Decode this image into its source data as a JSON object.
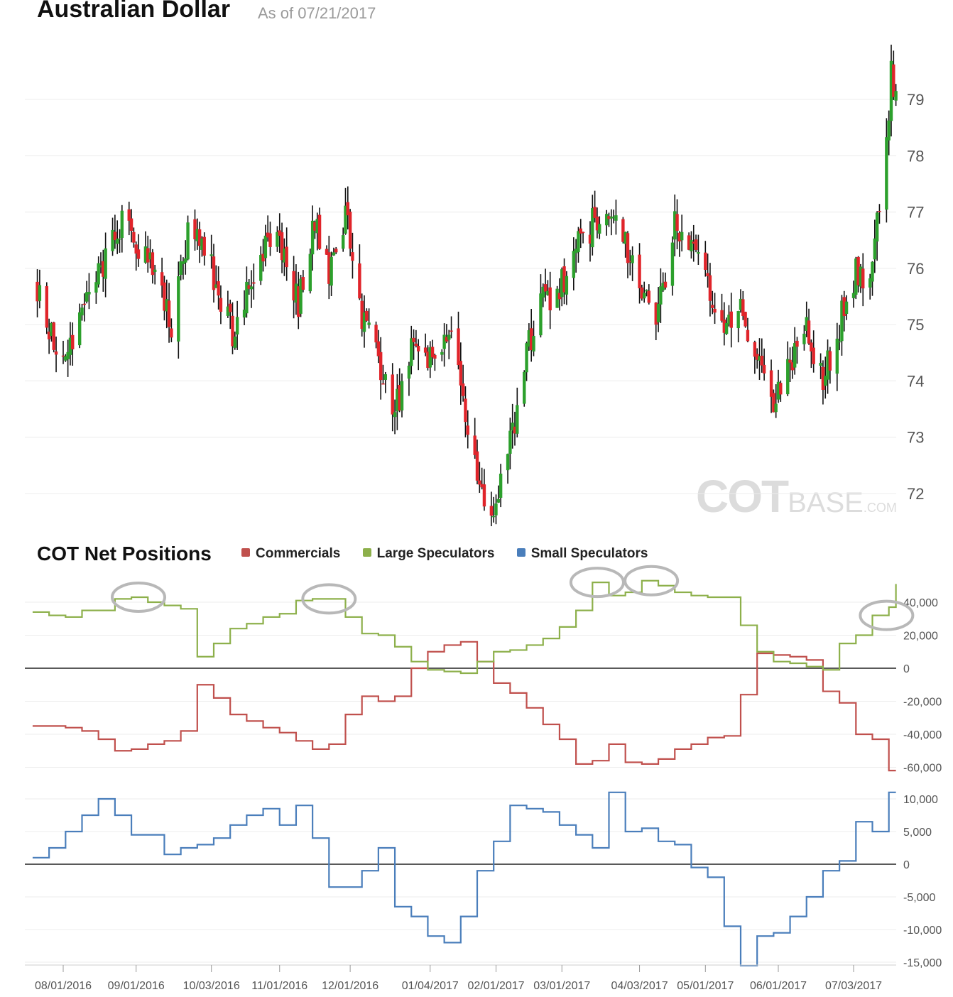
{
  "header": {
    "title": "Australian Dollar",
    "as_of": "As of 07/21/2017"
  },
  "cot_header": {
    "title": "COT Net Positions"
  },
  "watermark": {
    "cot": "COT",
    "base": "BASE",
    "com": ".COM"
  },
  "legend": [
    {
      "label": "Commercials",
      "color": "#c0504d"
    },
    {
      "label": "Large Speculators",
      "color": "#8db04b"
    },
    {
      "label": "Small Speculators",
      "color": "#4a7ebb"
    }
  ],
  "chart_data": [
    {
      "type": "candlestick",
      "title": "Australian Dollar",
      "y_ticks": [
        72,
        73,
        74,
        75,
        76,
        77,
        78,
        79
      ],
      "ylim": [
        71.5,
        79.9
      ],
      "colors": {
        "up": "#2ca02c",
        "down": "#e0242a",
        "wick": "#111111"
      },
      "x_range": [
        "07/21/2016",
        "07/21/2017"
      ],
      "close_path": [
        [
          "07/21/2016",
          75.7
        ],
        [
          "07/27/2016",
          74.8
        ],
        [
          "08/03/2016",
          74.4
        ],
        [
          "08/10/2016",
          75.5
        ],
        [
          "08/18/2016",
          76.0
        ],
        [
          "08/26/2016",
          76.9
        ],
        [
          "09/02/2016",
          76.4
        ],
        [
          "09/09/2016",
          76.1
        ],
        [
          "09/16/2016",
          75.0
        ],
        [
          "09/23/2016",
          76.6
        ],
        [
          "09/30/2016",
          76.5
        ],
        [
          "10/06/2016",
          75.4
        ],
        [
          "10/13/2016",
          74.8
        ],
        [
          "10/20/2016",
          75.9
        ],
        [
          "10/28/2016",
          76.6
        ],
        [
          "11/03/2016",
          76.2
        ],
        [
          "11/09/2016",
          75.4
        ],
        [
          "11/16/2016",
          76.8
        ],
        [
          "11/22/2016",
          75.9
        ],
        [
          "11/29/2016",
          76.9
        ],
        [
          "12/06/2016",
          75.2
        ],
        [
          "12/14/2016",
          74.2
        ],
        [
          "12/20/2016",
          73.4
        ],
        [
          "12/27/2016",
          74.6
        ],
        [
          "01/04/2017",
          74.5
        ],
        [
          "01/11/2017",
          74.9
        ],
        [
          "01/17/2017",
          74.1
        ],
        [
          "01/23/2017",
          72.4
        ],
        [
          "01/30/2017",
          71.7
        ],
        [
          "02/06/2017",
          72.6
        ],
        [
          "02/14/2017",
          74.5
        ],
        [
          "02/21/2017",
          75.4
        ],
        [
          "02/28/2017",
          75.6
        ],
        [
          "03/07/2017",
          76.3
        ],
        [
          "03/14/2017",
          76.8
        ],
        [
          "03/21/2017",
          77.0
        ],
        [
          "03/28/2017",
          76.4
        ],
        [
          "04/04/2017",
          75.5
        ],
        [
          "04/11/2017",
          75.2
        ],
        [
          "04/18/2017",
          76.9
        ],
        [
          "04/25/2017",
          76.4
        ],
        [
          "05/02/2017",
          75.6
        ],
        [
          "05/09/2017",
          74.9
        ],
        [
          "05/16/2017",
          75.3
        ],
        [
          "05/23/2017",
          74.4
        ],
        [
          "05/30/2017",
          73.5
        ],
        [
          "06/06/2017",
          74.3
        ],
        [
          "06/13/2017",
          74.9
        ],
        [
          "06/20/2017",
          74.0
        ],
        [
          "06/27/2017",
          75.0
        ],
        [
          "07/04/2017",
          76.0
        ],
        [
          "07/10/2017",
          75.8
        ],
        [
          "07/13/2017",
          76.7
        ],
        [
          "07/17/2017",
          78.1
        ],
        [
          "07/19/2017",
          79.4
        ],
        [
          "07/21/2017",
          79.1
        ]
      ]
    },
    {
      "type": "line",
      "title": "COT Net Positions",
      "step": true,
      "y_ticks": [
        -60000,
        -40000,
        -20000,
        0,
        20000,
        40000
      ],
      "y_tick_labels": [
        "-60,000",
        "-40,000",
        "-20,000",
        "0",
        "20,000",
        "40,000"
      ],
      "ylim": [
        -61000,
        52000
      ],
      "annotations": "gray ellipses around Large Speculators peaks",
      "series": [
        {
          "name": "Commercials",
          "color": "#c0504d",
          "points": [
            [
              "07/19/2016",
              -35000
            ],
            [
              "07/26/2016",
              -35000
            ],
            [
              "08/02/2016",
              -36000
            ],
            [
              "08/09/2016",
              -38000
            ],
            [
              "08/16/2016",
              -43000
            ],
            [
              "08/23/2016",
              -50000
            ],
            [
              "08/30/2016",
              -49000
            ],
            [
              "09/06/2016",
              -46000
            ],
            [
              "09/13/2016",
              -44000
            ],
            [
              "09/20/2016",
              -38000
            ],
            [
              "09/27/2016",
              -10000
            ],
            [
              "10/04/2016",
              -18000
            ],
            [
              "10/11/2016",
              -28000
            ],
            [
              "10/18/2016",
              -32000
            ],
            [
              "10/25/2016",
              -36000
            ],
            [
              "11/01/2016",
              -39000
            ],
            [
              "11/08/2016",
              -44000
            ],
            [
              "11/15/2016",
              -49000
            ],
            [
              "11/22/2016",
              -46000
            ],
            [
              "11/29/2016",
              -28000
            ],
            [
              "12/06/2016",
              -17000
            ],
            [
              "12/13/2016",
              -20000
            ],
            [
              "12/20/2016",
              -17000
            ],
            [
              "12/27/2016",
              0
            ],
            [
              "01/03/2017",
              10000
            ],
            [
              "01/10/2017",
              14000
            ],
            [
              "01/17/2017",
              16000
            ],
            [
              "01/24/2017",
              4000
            ],
            [
              "01/31/2017",
              -9000
            ],
            [
              "02/07/2017",
              -15000
            ],
            [
              "02/14/2017",
              -24000
            ],
            [
              "02/21/2017",
              -34000
            ],
            [
              "02/28/2017",
              -43000
            ],
            [
              "03/07/2017",
              -58000
            ],
            [
              "03/14/2017",
              -56000
            ],
            [
              "03/21/2017",
              -46000
            ],
            [
              "03/28/2017",
              -57000
            ],
            [
              "04/04/2017",
              -58000
            ],
            [
              "04/11/2017",
              -55000
            ],
            [
              "04/18/2017",
              -49000
            ],
            [
              "04/25/2017",
              -46000
            ],
            [
              "05/02/2017",
              -42000
            ],
            [
              "05/09/2017",
              -41000
            ],
            [
              "05/16/2017",
              -16000
            ],
            [
              "05/23/2017",
              9000
            ],
            [
              "05/30/2017",
              8000
            ],
            [
              "06/06/2017",
              7000
            ],
            [
              "06/13/2017",
              5000
            ],
            [
              "06/20/2017",
              -14000
            ],
            [
              "06/27/2017",
              -21000
            ],
            [
              "07/04/2017",
              -40000
            ],
            [
              "07/11/2017",
              -43000
            ],
            [
              "07/18/2017",
              -62000
            ],
            [
              "07/21/2017",
              -62000
            ]
          ]
        },
        {
          "name": "Large Speculators",
          "color": "#8db04b",
          "points": [
            [
              "07/19/2016",
              34000
            ],
            [
              "07/26/2016",
              32000
            ],
            [
              "08/02/2016",
              31000
            ],
            [
              "08/09/2016",
              35000
            ],
            [
              "08/16/2016",
              35000
            ],
            [
              "08/23/2016",
              42000
            ],
            [
              "08/30/2016",
              43000
            ],
            [
              "09/06/2016",
              40000
            ],
            [
              "09/13/2016",
              38000
            ],
            [
              "09/20/2016",
              36000
            ],
            [
              "09/27/2016",
              7000
            ],
            [
              "10/04/2016",
              15000
            ],
            [
              "10/11/2016",
              24000
            ],
            [
              "10/18/2016",
              27000
            ],
            [
              "10/25/2016",
              31000
            ],
            [
              "11/01/2016",
              33000
            ],
            [
              "11/08/2016",
              41000
            ],
            [
              "11/15/2016",
              42000
            ],
            [
              "11/22/2016",
              42000
            ],
            [
              "11/29/2016",
              31000
            ],
            [
              "12/06/2016",
              21000
            ],
            [
              "12/13/2016",
              20000
            ],
            [
              "12/20/2016",
              13000
            ],
            [
              "12/27/2016",
              4000
            ],
            [
              "01/03/2017",
              -1000
            ],
            [
              "01/10/2017",
              -2000
            ],
            [
              "01/17/2017",
              -3000
            ],
            [
              "01/24/2017",
              4000
            ],
            [
              "01/31/2017",
              10000
            ],
            [
              "02/07/2017",
              11000
            ],
            [
              "02/14/2017",
              14000
            ],
            [
              "02/21/2017",
              18000
            ],
            [
              "02/28/2017",
              25000
            ],
            [
              "03/07/2017",
              35000
            ],
            [
              "03/14/2017",
              52000
            ],
            [
              "03/21/2017",
              44000
            ],
            [
              "03/28/2017",
              46000
            ],
            [
              "04/04/2017",
              53000
            ],
            [
              "04/11/2017",
              50000
            ],
            [
              "04/18/2017",
              46000
            ],
            [
              "04/25/2017",
              44000
            ],
            [
              "05/02/2017",
              43000
            ],
            [
              "05/09/2017",
              43000
            ],
            [
              "05/16/2017",
              26000
            ],
            [
              "05/23/2017",
              10000
            ],
            [
              "05/30/2017",
              4000
            ],
            [
              "06/06/2017",
              3000
            ],
            [
              "06/13/2017",
              1000
            ],
            [
              "06/20/2017",
              -1000
            ],
            [
              "06/27/2017",
              15000
            ],
            [
              "07/04/2017",
              20000
            ],
            [
              "07/11/2017",
              32000
            ],
            [
              "07/18/2017",
              37000
            ],
            [
              "07/21/2017",
              51000
            ]
          ]
        }
      ]
    },
    {
      "type": "line",
      "step": true,
      "y_ticks": [
        -15000,
        -10000,
        -5000,
        0,
        5000,
        10000
      ],
      "y_tick_labels": [
        "-15,000",
        "-10,000",
        "-5,000",
        "0",
        "5,000",
        "10,000"
      ],
      "ylim": [
        -15500,
        11500
      ],
      "x_ticks": [
        "08/01/2016",
        "09/01/2016",
        "10/03/2016",
        "11/01/2016",
        "12/01/2016",
        "01/04/2017",
        "02/01/2017",
        "03/01/2017",
        "04/03/2017",
        "05/01/2017",
        "06/01/2017",
        "07/03/2017"
      ],
      "series": [
        {
          "name": "Small Speculators",
          "color": "#4a7ebb",
          "points": [
            [
              "07/19/2016",
              1000
            ],
            [
              "07/26/2016",
              2500
            ],
            [
              "08/02/2016",
              5000
            ],
            [
              "08/09/2016",
              7500
            ],
            [
              "08/16/2016",
              10000
            ],
            [
              "08/23/2016",
              7500
            ],
            [
              "08/30/2016",
              4500
            ],
            [
              "09/06/2016",
              4500
            ],
            [
              "09/13/2016",
              1500
            ],
            [
              "09/20/2016",
              2500
            ],
            [
              "09/27/2016",
              3000
            ],
            [
              "10/04/2016",
              4000
            ],
            [
              "10/11/2016",
              6000
            ],
            [
              "10/18/2016",
              7500
            ],
            [
              "10/25/2016",
              8500
            ],
            [
              "11/01/2016",
              6000
            ],
            [
              "11/08/2016",
              9000
            ],
            [
              "11/15/2016",
              4000
            ],
            [
              "11/22/2016",
              -3500
            ],
            [
              "11/29/2016",
              -3500
            ],
            [
              "12/06/2016",
              -1000
            ],
            [
              "12/13/2016",
              2500
            ],
            [
              "12/20/2016",
              -6500
            ],
            [
              "12/27/2016",
              -8000
            ],
            [
              "01/03/2017",
              -11000
            ],
            [
              "01/10/2017",
              -12000
            ],
            [
              "01/17/2017",
              -8000
            ],
            [
              "01/24/2017",
              -1000
            ],
            [
              "01/31/2017",
              3500
            ],
            [
              "02/07/2017",
              9000
            ],
            [
              "02/14/2017",
              8500
            ],
            [
              "02/21/2017",
              8000
            ],
            [
              "02/28/2017",
              6000
            ],
            [
              "03/07/2017",
              4500
            ],
            [
              "03/14/2017",
              2500
            ],
            [
              "03/21/2017",
              11000
            ],
            [
              "03/28/2017",
              5000
            ],
            [
              "04/04/2017",
              5500
            ],
            [
              "04/11/2017",
              3500
            ],
            [
              "04/18/2017",
              3000
            ],
            [
              "04/25/2017",
              -500
            ],
            [
              "05/02/2017",
              -2000
            ],
            [
              "05/09/2017",
              -9500
            ],
            [
              "05/16/2017",
              -15500
            ],
            [
              "05/23/2017",
              -11000
            ],
            [
              "05/30/2017",
              -10500
            ],
            [
              "06/06/2017",
              -8000
            ],
            [
              "06/13/2017",
              -5000
            ],
            [
              "06/20/2017",
              -1000
            ],
            [
              "06/27/2017",
              500
            ],
            [
              "07/04/2017",
              6500
            ],
            [
              "07/11/2017",
              5000
            ],
            [
              "07/18/2017",
              11000
            ],
            [
              "07/21/2017",
              11000
            ]
          ]
        }
      ]
    }
  ]
}
